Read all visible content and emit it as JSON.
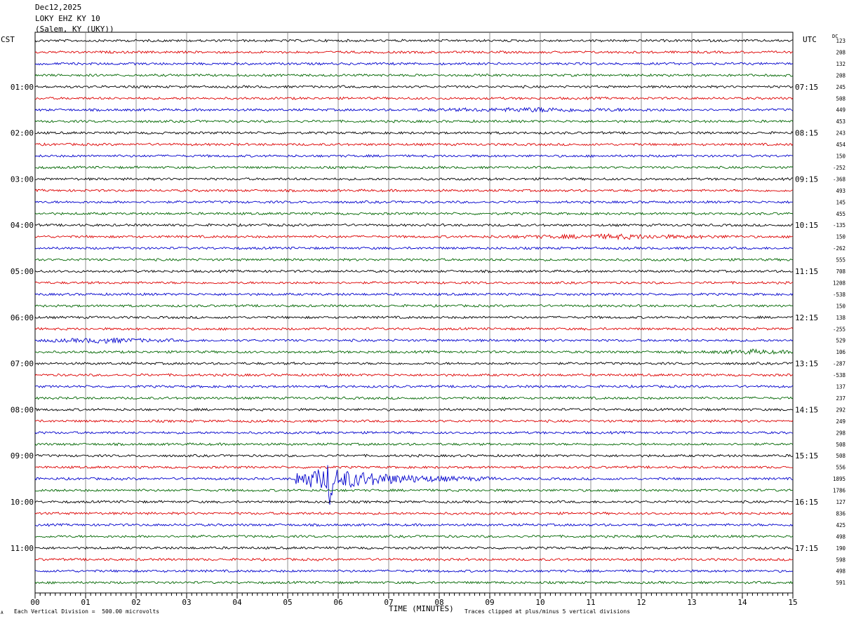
{
  "header": {
    "date": "Dec12,2025",
    "station": "LOKY EHZ KY 10",
    "location": "(Salem, KY (UKY))"
  },
  "left_tz": "CST",
  "right_tz": "UTC",
  "dc_label": "DC",
  "xlabel": "TIME (MINUTES)",
  "footer": {
    "scale": "Each Vertical Division =  500.00 microvolts",
    "clip": "Traces clipped at plus/minus 5 vertical divisions",
    "corner": "A"
  },
  "chart_data": {
    "type": "line",
    "title": "LOKY EHZ KY 10",
    "xlabel": "TIME (MINUTES)",
    "xlim": [
      0,
      15
    ],
    "x_ticks": [
      "00",
      "01",
      "02",
      "03",
      "04",
      "05",
      "06",
      "07",
      "08",
      "09",
      "10",
      "11",
      "12",
      "13",
      "14",
      "15"
    ],
    "left_hour_labels": [
      "01:00",
      "02:00",
      "03:00",
      "04:00",
      "05:00",
      "06:00",
      "07:00",
      "08:00",
      "09:00",
      "10:00",
      "11:00"
    ],
    "right_hour_labels": [
      "07:15",
      "08:15",
      "09:15",
      "10:15",
      "11:15",
      "12:15",
      "13:15",
      "14:15",
      "15:15",
      "16:15",
      "17:15"
    ],
    "trace_colors": [
      "#000000",
      "#dd0000",
      "#0000cc",
      "#006600"
    ],
    "row_count": 48,
    "row_interval_minutes": 15,
    "dc_offsets": [
      "123",
      "208",
      "132",
      "208",
      "245",
      "508",
      "449",
      "453",
      "243",
      "454",
      "150",
      "-252",
      "-368",
      "493",
      "145",
      "455",
      "-135",
      "150",
      "-262",
      "555",
      "708",
      "1208",
      "-538",
      "150",
      "138",
      "-255",
      "529",
      "106",
      "-287",
      "-538",
      "137",
      "237",
      "292",
      "249",
      "298",
      "508",
      "508",
      "556",
      "1895",
      "1786",
      "127",
      "836",
      "425",
      "498",
      "190",
      "598",
      "498",
      "591"
    ],
    "amplitude_divisions_per_row": 1,
    "trace_clip_divisions": 5,
    "events": [
      {
        "row": 38,
        "start_min": 5.15,
        "end_min": 9.2,
        "peak_min": 5.83,
        "peak_amplitude": 5
      },
      {
        "row": 26,
        "start_min": 0.0,
        "end_min": 2.75,
        "peak_min": 1.4,
        "peak_amplitude": 0.9
      },
      {
        "row": 6,
        "start_min": 7.4,
        "end_min": 12.5,
        "peak_min": 10.0,
        "peak_amplitude": 0.7
      },
      {
        "row": 17,
        "start_min": 9.0,
        "end_min": 14.0,
        "peak_min": 11.5,
        "peak_amplitude": 0.8
      },
      {
        "row": 27,
        "start_min": 13.2,
        "end_min": 15.0,
        "peak_min": 14.2,
        "peak_amplitude": 0.8
      }
    ]
  }
}
